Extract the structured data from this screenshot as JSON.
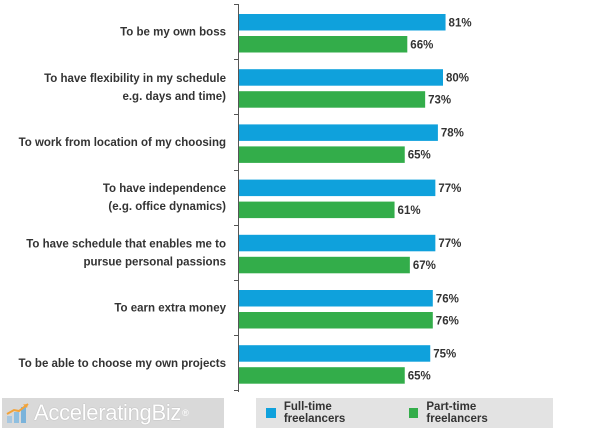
{
  "chart_data": {
    "type": "bar",
    "orientation": "horizontal",
    "categories": [
      [
        "To be my own boss"
      ],
      [
        "To have flexibility in my schedule",
        "e.g. days and time)"
      ],
      [
        "To work from location of my choosing"
      ],
      [
        "To have independence",
        "(e.g. office dynamics)"
      ],
      [
        "To have schedule that enables me to",
        "pursue personal passions"
      ],
      [
        "To earn extra money"
      ],
      [
        "To be able to choose my own projects"
      ]
    ],
    "series": [
      {
        "name": "Full-time freelancers",
        "color": "#0fa1dc",
        "values": [
          81,
          80,
          78,
          77,
          77,
          76,
          75
        ]
      },
      {
        "name": "Part-time freelancers",
        "color": "#33ad4a",
        "values": [
          66,
          73,
          65,
          61,
          67,
          76,
          65
        ]
      }
    ],
    "value_suffix": "%",
    "xlim": [
      0,
      100
    ],
    "grid": false,
    "legend_position": "bottom"
  },
  "branding": {
    "logo_text": "AcceleratingBiz",
    "logo_mark": "®"
  }
}
